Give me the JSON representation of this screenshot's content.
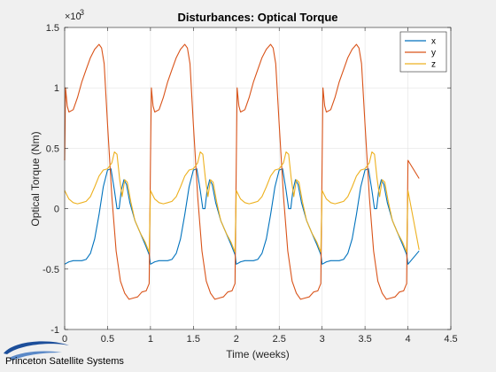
{
  "chart_data": {
    "type": "line",
    "title": "Disturbances: Optical Torque",
    "xlabel": "Time (weeks)",
    "ylabel": "Optical Torque (Nm)",
    "exponent_label": "×10",
    "exponent_power": "-3",
    "xlim": [
      0,
      4.5
    ],
    "ylim": [
      -1,
      1.5
    ],
    "xticks": [
      0,
      0.5,
      1,
      1.5,
      2,
      2.5,
      3,
      3.5,
      4,
      4.5
    ],
    "xtick_labels": [
      "0",
      "0.5",
      "1",
      "1.5",
      "2",
      "2.5",
      "3",
      "3.5",
      "4",
      "4.5"
    ],
    "yticks": [
      -1,
      -0.5,
      0,
      0.5,
      1,
      1.5
    ],
    "ytick_labels": [
      "-1",
      "-0.5",
      "0",
      "0.5",
      "1",
      "1.5"
    ],
    "grid": true,
    "legend_position": "top-right",
    "period_weeks": 1.0,
    "cycles": 4,
    "x_end": 4.13,
    "series": [
      {
        "name": "x",
        "color": "#0072BD",
        "one_period": [
          [
            0.0,
            -0.46
          ],
          [
            0.05,
            -0.44
          ],
          [
            0.1,
            -0.43
          ],
          [
            0.15,
            -0.43
          ],
          [
            0.2,
            -0.43
          ],
          [
            0.25,
            -0.42
          ],
          [
            0.3,
            -0.37
          ],
          [
            0.35,
            -0.25
          ],
          [
            0.4,
            -0.05
          ],
          [
            0.45,
            0.18
          ],
          [
            0.5,
            0.32
          ],
          [
            0.54,
            0.33
          ],
          [
            0.58,
            0.15
          ],
          [
            0.61,
            0.0
          ],
          [
            0.635,
            0.0
          ],
          [
            0.66,
            0.15
          ],
          [
            0.69,
            0.24
          ],
          [
            0.72,
            0.2
          ],
          [
            0.76,
            0.05
          ],
          [
            0.82,
            -0.1
          ],
          [
            0.88,
            -0.2
          ],
          [
            0.94,
            -0.3
          ],
          [
            0.985,
            -0.38
          ]
        ]
      },
      {
        "name": "y",
        "color": "#D95319",
        "one_period": [
          [
            0.0,
            0.4
          ],
          [
            0.01,
            1.0
          ],
          [
            0.03,
            0.85
          ],
          [
            0.05,
            0.8
          ],
          [
            0.1,
            0.82
          ],
          [
            0.15,
            0.92
          ],
          [
            0.2,
            1.05
          ],
          [
            0.25,
            1.15
          ],
          [
            0.3,
            1.25
          ],
          [
            0.35,
            1.32
          ],
          [
            0.4,
            1.36
          ],
          [
            0.43,
            1.33
          ],
          [
            0.46,
            1.2
          ],
          [
            0.5,
            0.7
          ],
          [
            0.55,
            0.1
          ],
          [
            0.6,
            -0.35
          ],
          [
            0.65,
            -0.6
          ],
          [
            0.7,
            -0.7
          ],
          [
            0.75,
            -0.75
          ],
          [
            0.8,
            -0.74
          ],
          [
            0.85,
            -0.73
          ],
          [
            0.9,
            -0.69
          ],
          [
            0.95,
            -0.68
          ],
          [
            0.985,
            -0.62
          ]
        ]
      },
      {
        "name": "z",
        "color": "#EDB120",
        "one_period": [
          [
            0.0,
            0.15
          ],
          [
            0.05,
            0.08
          ],
          [
            0.1,
            0.05
          ],
          [
            0.15,
            0.04
          ],
          [
            0.2,
            0.05
          ],
          [
            0.25,
            0.06
          ],
          [
            0.3,
            0.1
          ],
          [
            0.35,
            0.18
          ],
          [
            0.4,
            0.27
          ],
          [
            0.45,
            0.32
          ],
          [
            0.5,
            0.33
          ],
          [
            0.55,
            0.38
          ],
          [
            0.58,
            0.47
          ],
          [
            0.61,
            0.45
          ],
          [
            0.64,
            0.25
          ],
          [
            0.67,
            0.1
          ],
          [
            0.7,
            0.24
          ],
          [
            0.73,
            0.22
          ],
          [
            0.77,
            0.06
          ],
          [
            0.82,
            -0.1
          ],
          [
            0.88,
            -0.2
          ],
          [
            0.94,
            -0.28
          ],
          [
            0.985,
            -0.36
          ]
        ]
      }
    ]
  },
  "footer": {
    "logo_text": "Princeton Satellite Systems"
  }
}
